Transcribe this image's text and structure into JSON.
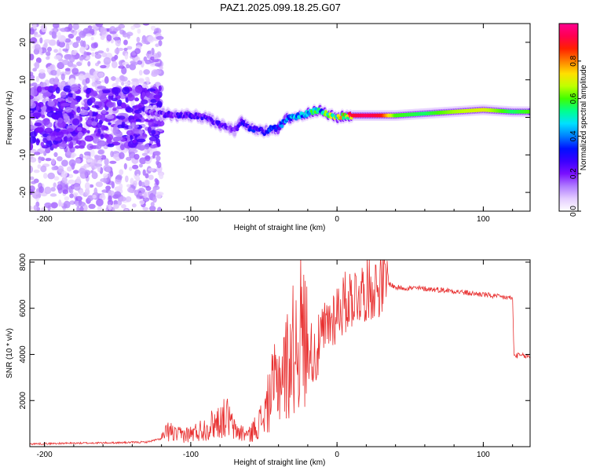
{
  "figure": {
    "title": "PAZ1.2025.099.18.25.G07"
  },
  "chart_data": [
    {
      "type": "heatmap",
      "xlabel": "Height of straight line (km)",
      "ylabel": "Frequency (Hz)",
      "xlim": [
        -210,
        132
      ],
      "ylim": [
        -25,
        25
      ],
      "xticks": [
        -200,
        -100,
        0,
        100
      ],
      "yticks": [
        -20,
        -10,
        0,
        10,
        20
      ],
      "colorbar": {
        "label": "Normalized spectral amplitude",
        "range": [
          0,
          1
        ],
        "ticks": [
          0.0,
          0.2,
          0.4,
          0.6,
          0.8
        ],
        "colormap": [
          "#ffffff",
          "#e4ccff",
          "#b07cff",
          "#7a10ff",
          "#3a00ff",
          "#0010ff",
          "#0080ff",
          "#00e0ff",
          "#00ff90",
          "#40ff00",
          "#c0ff00",
          "#ffe000",
          "#ff8000",
          "#ff2000",
          "#ff0050",
          "#ff0090"
        ]
      },
      "ridge": {
        "x": [
          -130,
          -120,
          -110,
          -100,
          -90,
          -80,
          -70,
          -65,
          -60,
          -55,
          -50,
          -45,
          -40,
          -35,
          -30,
          -25,
          -20,
          -15,
          -10,
          -5,
          0,
          10,
          20,
          30,
          40,
          60,
          80,
          100,
          120,
          132
        ],
        "frequency": [
          1.5,
          1.0,
          0.5,
          0.5,
          0,
          -2,
          -3.5,
          -1,
          -3,
          -3,
          -4,
          -3,
          -3,
          -0.5,
          0,
          0.5,
          1,
          2,
          1.5,
          0.5,
          0,
          0.5,
          0.5,
          0.5,
          0.5,
          1,
          1.5,
          2,
          1.5,
          1.5
        ],
        "amplitude": [
          0.2,
          0.22,
          0.25,
          0.25,
          0.25,
          0.25,
          0.2,
          0.3,
          0.3,
          0.3,
          0.25,
          0.35,
          0.35,
          0.4,
          0.45,
          0.5,
          0.45,
          0.55,
          0.5,
          0.6,
          0.65,
          0.9,
          0.95,
          0.9,
          0.6,
          0.55,
          0.65,
          0.7,
          0.55,
          0.6
        ]
      }
    },
    {
      "type": "line",
      "xlabel": "Height of straight line (km)",
      "ylabel": "SNR (10 * v/v)",
      "xlim": [
        -210,
        132
      ],
      "ylim": [
        0,
        8100
      ],
      "xticks": [
        -200,
        -100,
        0,
        100
      ],
      "yticks": [
        2000,
        4000,
        6000,
        8000
      ],
      "series": [
        {
          "color": "#e83030",
          "x": [
            -210,
            -180,
            -150,
            -130,
            -120,
            -115,
            -110,
            -100,
            -90,
            -80,
            -75,
            -70,
            -60,
            -50,
            -45,
            -40,
            -35,
            -30,
            -25,
            -20,
            -15,
            -10,
            -5,
            0,
            5,
            10,
            20,
            30,
            35,
            40,
            60,
            80,
            90,
            100,
            110,
            118,
            120,
            121,
            125,
            132
          ],
          "y": [
            120,
            150,
            170,
            200,
            350,
            700,
            500,
            550,
            800,
            1150,
            1300,
            700,
            500,
            1300,
            2300,
            3000,
            3400,
            4200,
            5000,
            4400,
            3900,
            4800,
            5400,
            5900,
            6200,
            6500,
            6800,
            7000,
            7100,
            6900,
            6850,
            6750,
            6650,
            6600,
            6500,
            6450,
            6450,
            3950,
            3950,
            3900
          ]
        }
      ]
    }
  ]
}
